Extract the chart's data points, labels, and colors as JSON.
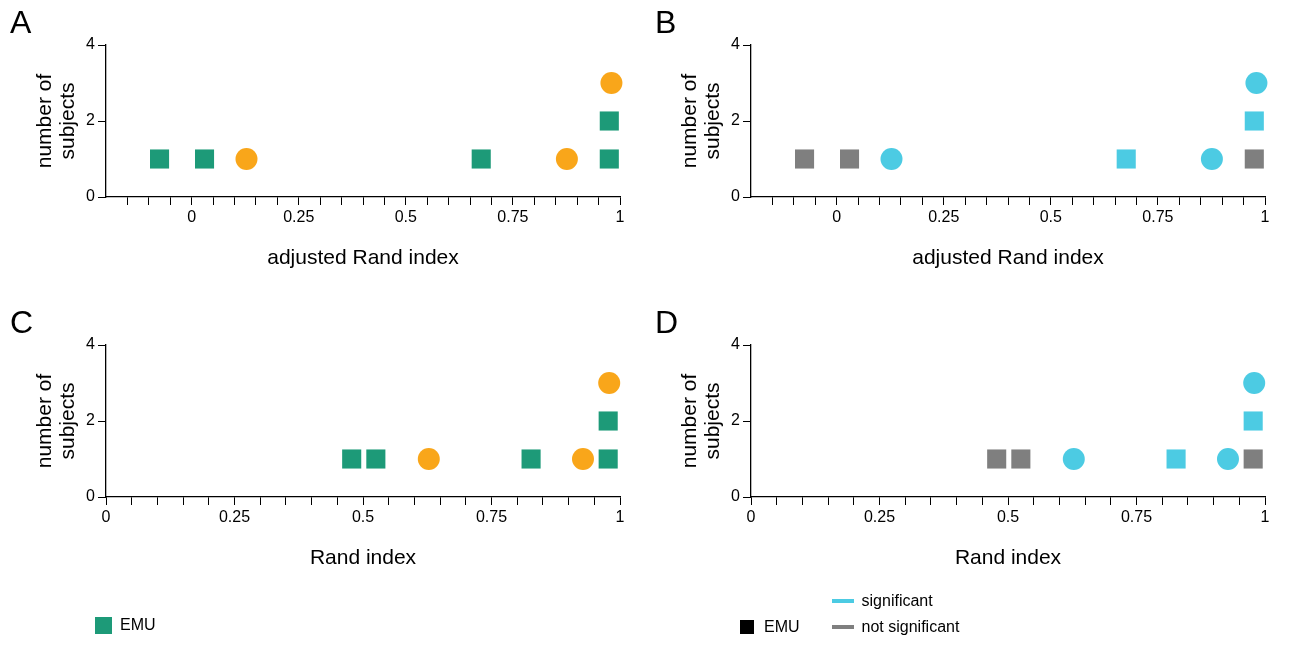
{
  "chart_data": [
    {
      "type": "scatter",
      "annotations": [
        "A"
      ],
      "xlabel": "adjusted Rand index",
      "ylabel": "number of subjects",
      "xlim": [
        -0.2,
        1
      ],
      "xticks": [
        {
          "value": -0.15,
          "label": null
        },
        {
          "value": -0.1,
          "label": null
        },
        {
          "value": -0.05,
          "label": null
        },
        0,
        {
          "value": 0.05,
          "label": null
        },
        {
          "value": 0.1,
          "label": null
        },
        {
          "value": 0.15,
          "label": null
        },
        {
          "value": 0.2,
          "label": null
        },
        0.25,
        {
          "value": 0.3,
          "label": null
        },
        {
          "value": 0.35,
          "label": null
        },
        {
          "value": 0.4,
          "label": null
        },
        {
          "value": 0.45,
          "label": null
        },
        0.5,
        {
          "value": 0.55,
          "label": null
        },
        {
          "value": 0.6,
          "label": null
        },
        {
          "value": 0.65,
          "label": null
        },
        {
          "value": 0.7,
          "label": null
        },
        0.75,
        {
          "value": 0.8,
          "label": null
        },
        {
          "value": 0.85,
          "label": null
        },
        {
          "value": 0.9,
          "label": null
        },
        {
          "value": 0.95,
          "label": null
        },
        1
      ],
      "ylim": [
        0,
        4
      ],
      "yticks": [
        0,
        2,
        4
      ],
      "grid": false,
      "legend": false,
      "series": [
        {
          "color": "#f9a61a",
          "marker": "circle",
          "x": [
            0.128,
            0.876,
            0.98
          ],
          "values": [
            1,
            1,
            3
          ]
        },
        {
          "color": "#1d9a78",
          "marker": "square",
          "x": [
            -0.075,
            0.03,
            0.676,
            0.975,
            0.975
          ],
          "values": [
            1,
            1,
            1,
            2,
            1
          ]
        }
      ]
    },
    {
      "type": "scatter",
      "annotations": [
        "B"
      ],
      "xlabel": "adjusted Rand index",
      "ylabel": "number of subjects",
      "xlim": [
        -0.2,
        1
      ],
      "xticks": [
        {
          "value": -0.15,
          "label": null
        },
        {
          "value": -0.1,
          "label": null
        },
        {
          "value": -0.05,
          "label": null
        },
        0,
        {
          "value": 0.05,
          "label": null
        },
        {
          "value": 0.1,
          "label": null
        },
        {
          "value": 0.15,
          "label": null
        },
        {
          "value": 0.2,
          "label": null
        },
        0.25,
        {
          "value": 0.3,
          "label": null
        },
        {
          "value": 0.35,
          "label": null
        },
        {
          "value": 0.4,
          "label": null
        },
        {
          "value": 0.45,
          "label": null
        },
        0.5,
        {
          "value": 0.55,
          "label": null
        },
        {
          "value": 0.6,
          "label": null
        },
        {
          "value": 0.65,
          "label": null
        },
        {
          "value": 0.7,
          "label": null
        },
        0.75,
        {
          "value": 0.8,
          "label": null
        },
        {
          "value": 0.85,
          "label": null
        },
        {
          "value": 0.9,
          "label": null
        },
        {
          "value": 0.95,
          "label": null
        },
        1
      ],
      "ylim": [
        0,
        4
      ],
      "yticks": [
        0,
        2,
        4
      ],
      "grid": false,
      "legend": false,
      "series": [
        {
          "color": "#4ccbe3",
          "marker": "circle",
          "x": [
            0.128,
            0.876,
            0.98
          ],
          "values": [
            1,
            1,
            3
          ]
        },
        {
          "color": "#4ccbe3",
          "marker": "square",
          "x": [
            0.676,
            0.975
          ],
          "values": [
            1,
            2
          ]
        },
        {
          "color": "#7f7f7f",
          "marker": "square",
          "x": [
            -0.075,
            0.03,
            0.975
          ],
          "values": [
            1,
            1,
            1
          ]
        }
      ]
    },
    {
      "type": "scatter",
      "annotations": [
        "C"
      ],
      "xlabel": "Rand index",
      "ylabel": "number of subjects",
      "xlim": [
        0,
        1
      ],
      "xticks": [
        0,
        {
          "value": 0.05,
          "label": null
        },
        {
          "value": 0.1,
          "label": null
        },
        {
          "value": 0.15,
          "label": null
        },
        {
          "value": 0.2,
          "label": null
        },
        0.25,
        {
          "value": 0.3,
          "label": null
        },
        {
          "value": 0.35,
          "label": null
        },
        {
          "value": 0.4,
          "label": null
        },
        {
          "value": 0.45,
          "label": null
        },
        0.5,
        {
          "value": 0.55,
          "label": null
        },
        {
          "value": 0.6,
          "label": null
        },
        {
          "value": 0.65,
          "label": null
        },
        {
          "value": 0.7,
          "label": null
        },
        0.75,
        {
          "value": 0.8,
          "label": null
        },
        {
          "value": 0.85,
          "label": null
        },
        {
          "value": 0.9,
          "label": null
        },
        {
          "value": 0.95,
          "label": null
        },
        1
      ],
      "ylim": [
        0,
        4
      ],
      "yticks": [
        0,
        2,
        4
      ],
      "grid": false,
      "legend": "bottom",
      "series": [
        {
          "color": "#f9a61a",
          "marker": "circle",
          "x": [
            0.628,
            0.928,
            0.979
          ],
          "values": [
            1,
            1,
            3
          ]
        },
        {
          "name": "EMU",
          "color": "#1d9a78",
          "marker": "square",
          "x": [
            0.478,
            0.525,
            0.827,
            0.977,
            0.977
          ],
          "values": [
            1,
            1,
            1,
            2,
            1
          ]
        }
      ]
    },
    {
      "type": "scatter",
      "annotations": [
        "D",
        "EMU"
      ],
      "xlabel": "Rand index",
      "ylabel": "number of subjects",
      "xlim": [
        0,
        1
      ],
      "xticks": [
        0,
        {
          "value": 0.05,
          "label": null
        },
        {
          "value": 0.1,
          "label": null
        },
        {
          "value": 0.15,
          "label": null
        },
        {
          "value": 0.2,
          "label": null
        },
        0.25,
        {
          "value": 0.3,
          "label": null
        },
        {
          "value": 0.35,
          "label": null
        },
        {
          "value": 0.4,
          "label": null
        },
        {
          "value": 0.45,
          "label": null
        },
        0.5,
        {
          "value": 0.55,
          "label": null
        },
        {
          "value": 0.6,
          "label": null
        },
        {
          "value": 0.65,
          "label": null
        },
        {
          "value": 0.7,
          "label": null
        },
        0.75,
        {
          "value": 0.8,
          "label": null
        },
        {
          "value": 0.85,
          "label": null
        },
        {
          "value": 0.9,
          "label": null
        },
        {
          "value": 0.95,
          "label": null
        },
        1
      ],
      "ylim": [
        0,
        4
      ],
      "yticks": [
        0,
        2,
        4
      ],
      "grid": false,
      "legend": "bottom",
      "series": [
        {
          "color": "#4ccbe3",
          "marker": "circle",
          "x": [
            0.628,
            0.928,
            0.979
          ],
          "values": [
            1,
            1,
            3
          ]
        },
        {
          "name": "significant",
          "color": "#4ccbe3",
          "marker": "square",
          "x": [
            0.827,
            0.977
          ],
          "values": [
            1,
            2
          ]
        },
        {
          "name": "not significant",
          "color": "#7f7f7f",
          "marker": "square",
          "x": [
            0.478,
            0.525,
            0.977
          ],
          "values": [
            1,
            1,
            1
          ]
        }
      ]
    }
  ]
}
